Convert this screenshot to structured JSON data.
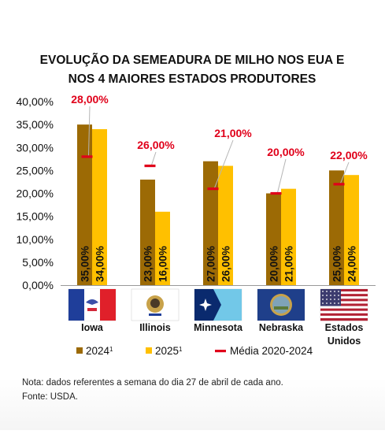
{
  "chart_data": {
    "type": "bar",
    "title_lines": [
      "EVOLUÇÃO DA SEMEADURA DE MILHO NOS EUA E",
      "NOS 4 MAIORES ESTADOS PRODUTORES"
    ],
    "categories": [
      "Iowa",
      "Illinois",
      "Minnesota",
      "Nebraska",
      "Estados Unidos"
    ],
    "category_lines": [
      [
        "Iowa"
      ],
      [
        "Illinois"
      ],
      [
        "Minnesota"
      ],
      [
        "Nebraska"
      ],
      [
        "Estados",
        "Unidos"
      ]
    ],
    "series": [
      {
        "name": "2024",
        "sup": "1",
        "color": "#9c6a05",
        "values": [
          35,
          23,
          27,
          20,
          25
        ],
        "labels": [
          "35,00%",
          "23,00%",
          "27,00%",
          "20,00%",
          "25,00%"
        ]
      },
      {
        "name": "2025",
        "sup": "1",
        "color": "#ffc000",
        "values": [
          34,
          16,
          26,
          21,
          24
        ],
        "labels": [
          "34,00%",
          "16,00%",
          "26,00%",
          "21,00%",
          "24,00%"
        ]
      }
    ],
    "average": {
      "name": "Média 2020-2024",
      "color": "#e0001a",
      "values": [
        28,
        26,
        21,
        20,
        22
      ],
      "labels": [
        "28,00%",
        "26,00%",
        "21,00%",
        "20,00%",
        "22,00%"
      ]
    },
    "ylim": [
      0,
      40
    ],
    "yticks": [
      0,
      5,
      10,
      15,
      20,
      25,
      30,
      35,
      40
    ],
    "ytick_labels": [
      "0,00%",
      "5,00%",
      "10,00%",
      "15,00%",
      "20,00%",
      "25,00%",
      "30,00%",
      "35,00%",
      "40,00%"
    ],
    "grid": false,
    "legend_position": "bottom"
  },
  "flags": [
    {
      "state": "Iowa",
      "icon": "iowa-flag-icon"
    },
    {
      "state": "Illinois",
      "icon": "illinois-flag-icon"
    },
    {
      "state": "Minnesota",
      "icon": "minnesota-flag-icon"
    },
    {
      "state": "Nebraska",
      "icon": "nebraska-flag-icon"
    },
    {
      "state": "Estados Unidos",
      "icon": "usa-flag-icon"
    }
  ],
  "notes": {
    "line1": "Nota: dados referentes a semana do dia 27 de abril de cada ano.",
    "line2": "Fonte: USDA."
  }
}
